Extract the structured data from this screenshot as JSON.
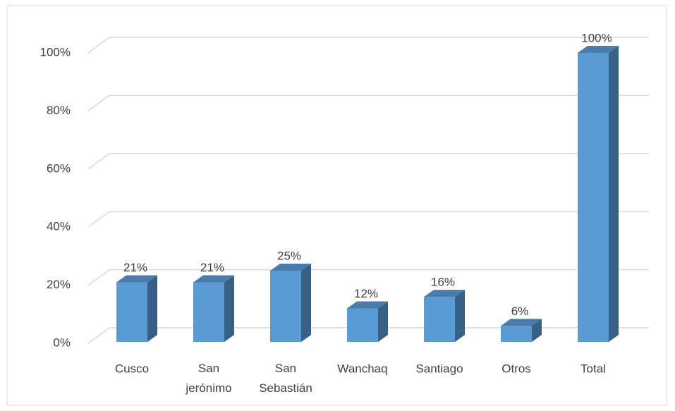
{
  "chart_data": {
    "type": "bar3d",
    "categories": [
      "Cusco",
      "San jerónimo",
      "San Sebastián",
      "Wanchaq",
      "Santiago",
      "Otros",
      "Total"
    ],
    "values": [
      21,
      21,
      25,
      12,
      16,
      6,
      100
    ],
    "value_labels": [
      "21%",
      "21%",
      "25%",
      "12%",
      "16%",
      "6%",
      "100%"
    ],
    "color": "#5b9bd5",
    "ylim": [
      0,
      100
    ],
    "yticks": [
      {
        "value": 0,
        "label": "0%"
      },
      {
        "value": 20,
        "label": "20%"
      },
      {
        "value": 40,
        "label": "40%"
      },
      {
        "value": 60,
        "label": "60%"
      },
      {
        "value": 80,
        "label": "80%"
      },
      {
        "value": 100,
        "label": "100%"
      }
    ],
    "grid": true
  }
}
